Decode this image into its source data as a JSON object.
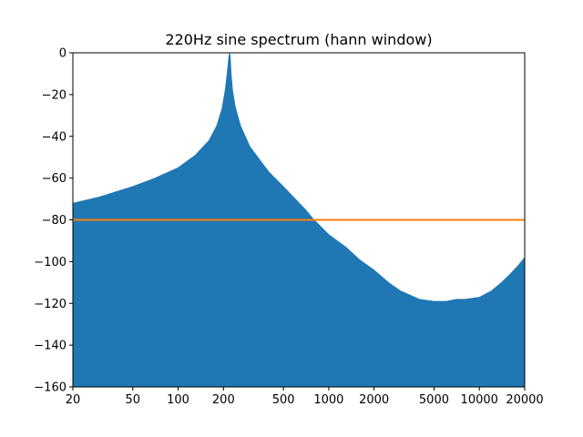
{
  "chart_data": {
    "type": "area",
    "title": "220Hz sine spectrum (hann window)",
    "xscale": "log",
    "xlim": [
      20,
      20000
    ],
    "ylim": [
      -160,
      0
    ],
    "x_ticks": [
      20,
      50,
      100,
      200,
      500,
      1000,
      2000,
      5000,
      10000,
      20000
    ],
    "y_ticks": [
      0,
      -20,
      -40,
      -60,
      -80,
      -100,
      -120,
      -140,
      -160
    ],
    "grid": false,
    "series": [
      {
        "kind": "spectrum",
        "color": "#1f77b4",
        "x": [
          20,
          30,
          50,
          70,
          100,
          130,
          160,
          180,
          195,
          205,
          212,
          216,
          218,
          220,
          222,
          225,
          230,
          240,
          260,
          300,
          400,
          500,
          600,
          700,
          800,
          1000,
          1300,
          1600,
          2000,
          2500,
          3000,
          4000,
          5000,
          6000,
          7000,
          8000,
          10000,
          12000,
          14000,
          16000,
          18000,
          20000
        ],
        "y": [
          -72,
          -69,
          -64,
          -60,
          -55,
          -49,
          -42,
          -35,
          -27,
          -18,
          -9,
          -3,
          -1,
          0,
          -2,
          -10,
          -18,
          -26,
          -35,
          -45,
          -57,
          -64,
          -70,
          -75,
          -80,
          -87,
          -93,
          -99,
          -104,
          -110,
          -114,
          -118,
          -119,
          -119,
          -118,
          -118,
          -117,
          -114,
          -110,
          -106,
          -102,
          -98
        ]
      },
      {
        "kind": "threshold",
        "color": "#ff7f0e",
        "x": [
          20,
          20000
        ],
        "y": [
          -80,
          -80
        ]
      }
    ]
  }
}
